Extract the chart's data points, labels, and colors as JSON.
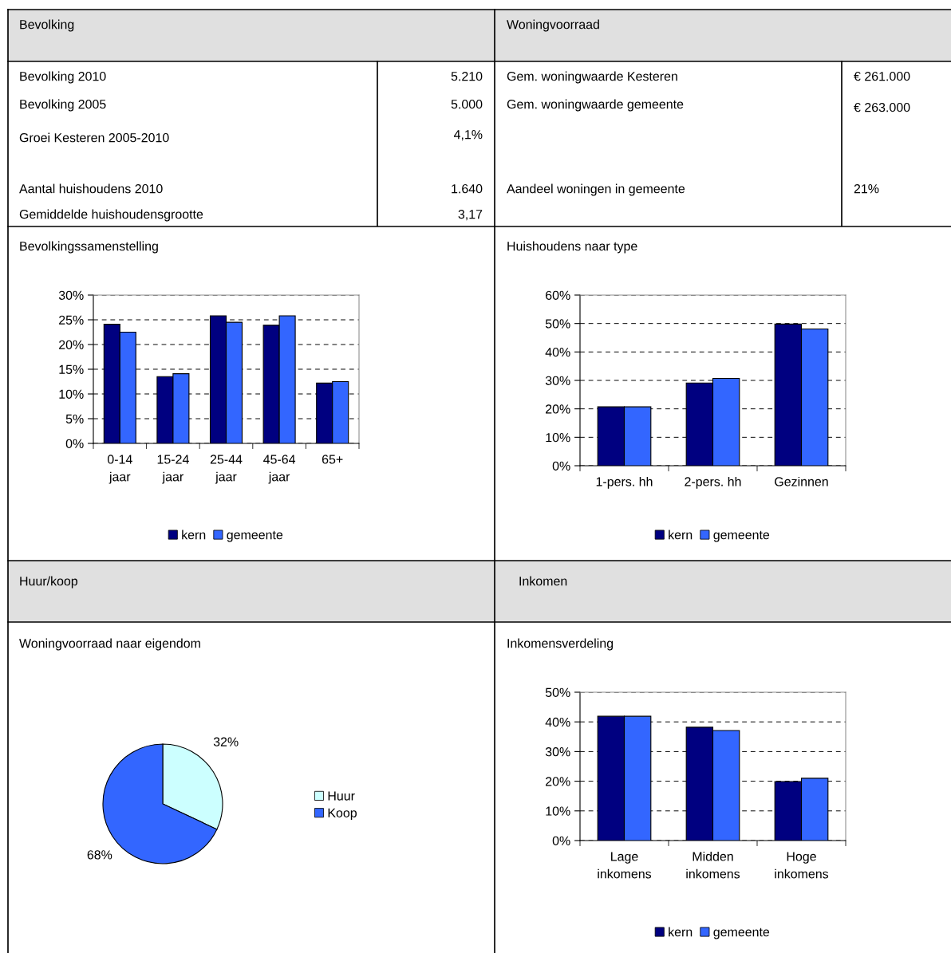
{
  "chart_data": [
    {
      "type": "other",
      "title": "Bevolking",
      "annotations": [
        "Bevolking 2010",
        "5.210",
        "Bevolking 2005",
        "5.000",
        "Groei Kesteren 2005-2010",
        "4,1%",
        "Aantal huishoudens 2010",
        "1.640",
        "Gemiddelde huishoudensgrootte",
        "3,17"
      ]
    },
    {
      "type": "other",
      "title": "Woningvoorraad",
      "annotations": [
        "Gem. woningwaarde Kesteren",
        "€ 261.000",
        "Gem. woningwaarde gemeente",
        "€ 263.000",
        "Aandeel woningen in gemeente",
        "21%"
      ]
    },
    {
      "type": "bar",
      "title": "Bevolkingssamenstelling",
      "categories": [
        "0-14\njaar",
        "15-24\njaar",
        "25-44\njaar",
        "45-64\njaar",
        "65+"
      ],
      "series": [
        {
          "name": "kern",
          "color": "#000080",
          "values": [
            24.1,
            13.5,
            25.8,
            23.9,
            12.2
          ]
        },
        {
          "name": "gemeente",
          "color": "#3366ff",
          "values": [
            22.5,
            14.1,
            24.5,
            25.8,
            12.5
          ]
        }
      ],
      "ylim": [
        0,
        30
      ],
      "yticks": [
        {
          "value": 0,
          "label": "0%"
        },
        {
          "value": 5,
          "label": "5%"
        },
        {
          "value": 10,
          "label": "10%"
        },
        {
          "value": 15,
          "label": "15%"
        },
        {
          "value": 20,
          "label": "20%"
        },
        {
          "value": 25,
          "label": "25%"
        },
        {
          "value": 30,
          "label": "30%"
        }
      ],
      "grid": "y",
      "legend": "bottom"
    },
    {
      "type": "bar",
      "title": "Huishoudens naar type",
      "categories": [
        "1-pers. hh",
        "2-pers. hh",
        "Gezinnen"
      ],
      "series": [
        {
          "name": "kern",
          "color": "#000080",
          "values": [
            20.7,
            29.1,
            49.8
          ]
        },
        {
          "name": "gemeente",
          "color": "#3366ff",
          "values": [
            20.7,
            30.7,
            48.1
          ]
        }
      ],
      "ylim": [
        0,
        60
      ],
      "yticks": [
        {
          "value": 0,
          "label": "0%"
        },
        {
          "value": 10,
          "label": "10%"
        },
        {
          "value": 20,
          "label": "20%"
        },
        {
          "value": 30,
          "label": "30%"
        },
        {
          "value": 40,
          "label": "40%"
        },
        {
          "value": 50,
          "label": "50%"
        },
        {
          "value": 60,
          "label": "60%"
        }
      ],
      "grid": "y",
      "legend": "bottom"
    },
    {
      "type": "other",
      "title": "Huur/koop"
    },
    {
      "type": "other",
      "title": "Inkomen"
    },
    {
      "type": "pie",
      "title": "Woningvoorraad naar eigendom",
      "categories": [
        "Huur",
        "Koop"
      ],
      "values": [
        32,
        68
      ],
      "colors": [
        "#ccffff",
        "#3366ff"
      ],
      "value_labels": [
        "32%",
        "68%"
      ],
      "legend": "right"
    },
    {
      "type": "bar",
      "title": "Inkomensverdeling",
      "categories": [
        "Lage\ninkomens",
        "Midden\ninkomens",
        "Hoge\ninkomens"
      ],
      "series": [
        {
          "name": "kern",
          "color": "#000080",
          "values": [
            41.9,
            38.2,
            19.9
          ]
        },
        {
          "name": "gemeente",
          "color": "#3366ff",
          "values": [
            41.9,
            37.1,
            21.0
          ]
        }
      ],
      "ylim": [
        0,
        50
      ],
      "yticks": [
        {
          "value": 0,
          "label": "0%"
        },
        {
          "value": 10,
          "label": "10%"
        },
        {
          "value": 20,
          "label": "20%"
        },
        {
          "value": 30,
          "label": "30%"
        },
        {
          "value": 40,
          "label": "40%"
        },
        {
          "value": 50,
          "label": "50%"
        }
      ],
      "grid": "y",
      "legend": "bottom"
    }
  ]
}
